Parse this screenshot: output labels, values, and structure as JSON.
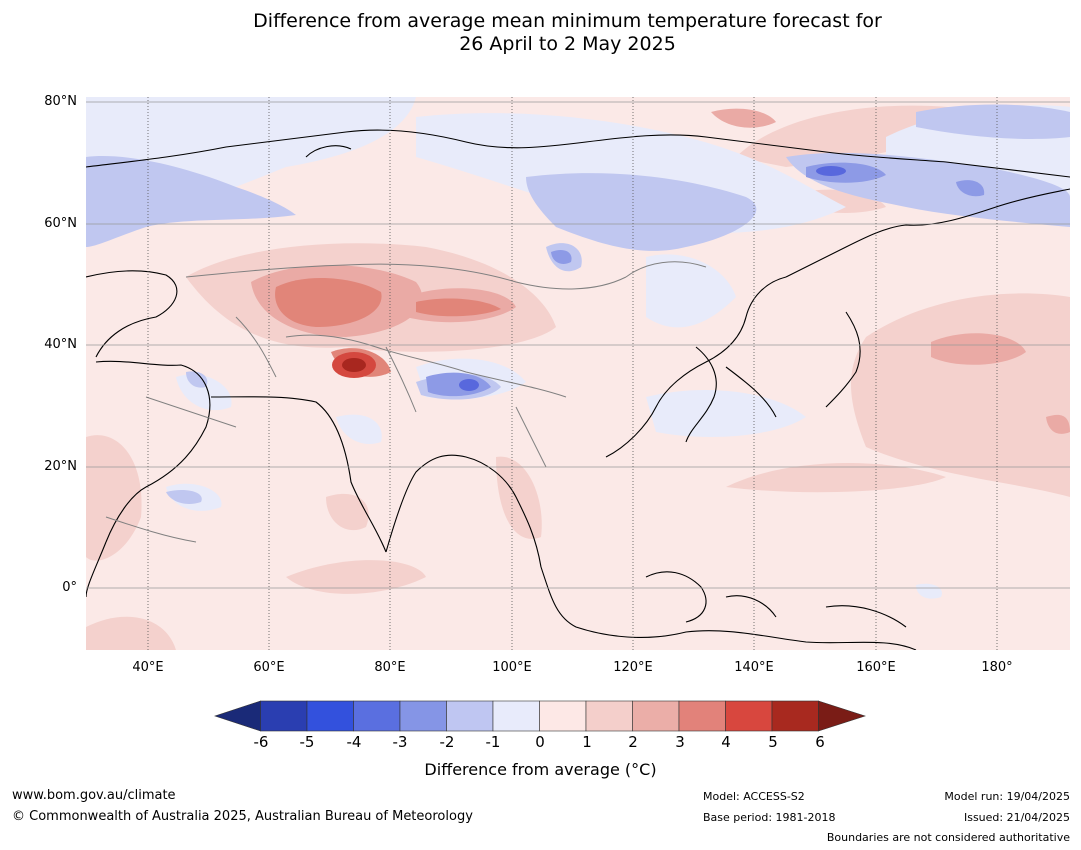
{
  "title": {
    "line1": "Difference from average mean minimum temperature forecast for",
    "line2": "26 April to 2 May 2025"
  },
  "map": {
    "lat_labels": [
      "80°N",
      "60°N",
      "40°N",
      "20°N",
      "0°"
    ],
    "lon_labels": [
      "40°E",
      "60°E",
      "80°E",
      "100°E",
      "120°E",
      "140°E",
      "160°E",
      "180°"
    ],
    "colors": {
      "ocean_neutral": "#fbe9e7",
      "warm1": "#f4d1cd",
      "warm2": "#eaaaa5",
      "warm3": "#e18579",
      "warm4": "#d4483f",
      "warm5": "#a8271f",
      "cool1": "#e8ebfa",
      "cool2": "#c0c7f0",
      "cool3": "#8d9ae6",
      "cool4": "#5868dd"
    }
  },
  "colorbar": {
    "ticks": [
      "-6",
      "-5",
      "-4",
      "-3",
      "-2",
      "-1",
      "0",
      "1",
      "2",
      "3",
      "4",
      "5",
      "6"
    ],
    "colors": [
      "#1a2a78",
      "#2a3eb1",
      "#3351dd",
      "#5a6fe0",
      "#8595e6",
      "#bfc6f2",
      "#e8ebfb",
      "#fde8e6",
      "#f4cfcb",
      "#ebaea8",
      "#e2827a",
      "#d8473e",
      "#a8291f",
      "#7a1c16"
    ],
    "label": "Difference from average (°C)"
  },
  "footer": {
    "url": "www.bom.gov.au/climate",
    "copyright": "© Commonwealth of Australia 2025, Australian Bureau of Meteorology",
    "model": "Model: ACCESS-S2",
    "base_period": "Base period: 1981-2018",
    "model_run": "Model run: 19/04/2025",
    "issued": "Issued: 21/04/2025",
    "disclaimer": "Boundaries are not considered authoritative"
  }
}
